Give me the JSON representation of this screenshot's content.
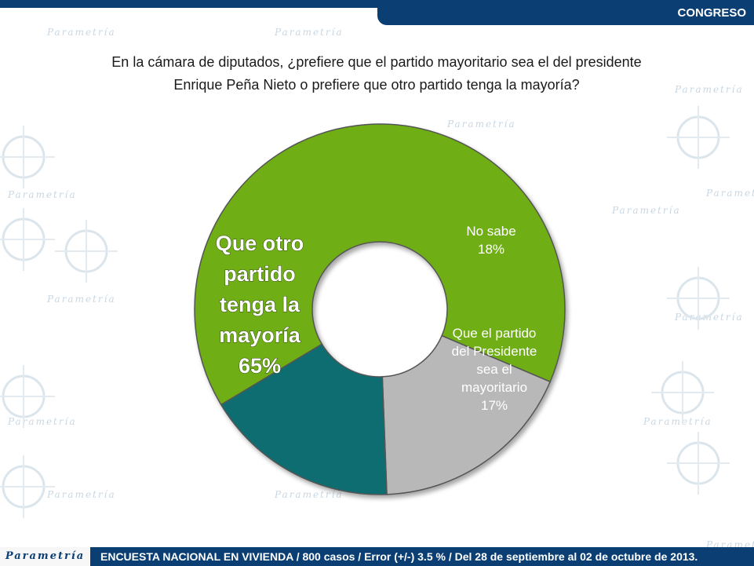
{
  "header": {
    "section_label": "CONGRESO"
  },
  "question": {
    "line1": "En la cámara de diputados, ¿prefiere que el partido mayoritario sea el del presidente",
    "line2": "Enrique Peña Nieto o prefiere que otro partido tenga la mayoría?"
  },
  "chart_data": {
    "type": "pie",
    "variant": "donut",
    "slices": [
      {
        "label": "Que otro partido tenga la mayoría",
        "value": 65,
        "value_label": "65%",
        "color": "#6fae14",
        "label_lines": [
          "Que otro",
          "partido",
          "tenga la",
          "mayoría",
          "65%"
        ]
      },
      {
        "label": "No sabe",
        "value": 18,
        "value_label": "18%",
        "color": "#b8b8b8",
        "label_lines": [
          "No sabe",
          "18%"
        ]
      },
      {
        "label": "Que el partido del Presidente sea el mayoritario",
        "value": 17,
        "value_label": "17%",
        "color": "#0f6d70",
        "label_lines": [
          "Que el partido",
          "del Presidente",
          "sea el",
          "mayoritario",
          "17%"
        ]
      }
    ]
  },
  "footer": {
    "logo_text": "Parametría",
    "note": "ENCUESTA NACIONAL EN VIVIENDA / 800 casos / Error (+/-) 3.5 % / Del 28 de septiembre al 02 de octubre de 2013."
  },
  "watermark": {
    "text": "Parametría"
  }
}
